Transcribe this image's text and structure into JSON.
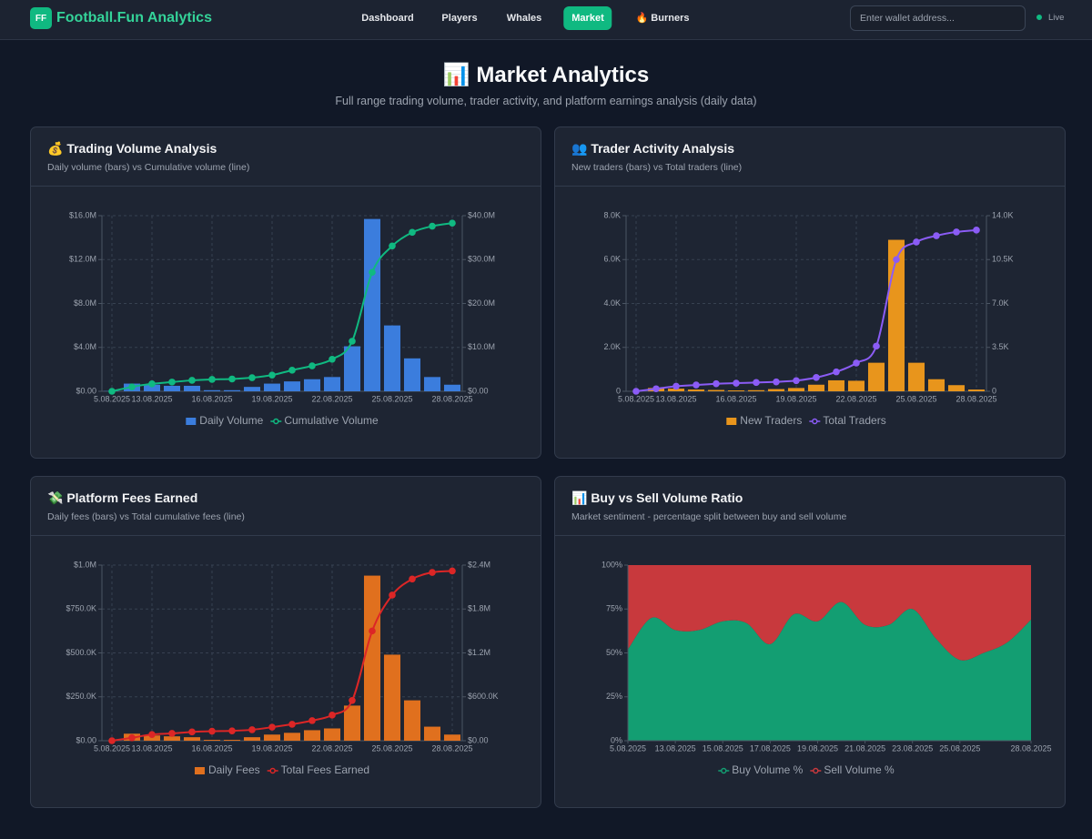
{
  "header": {
    "logo": "FF",
    "brand": "Football.Fun Analytics",
    "nav": [
      "Dashboard",
      "Players",
      "Whales",
      "Market",
      "🔥 Burners"
    ],
    "search_placeholder": "Enter wallet address...",
    "status": "Live"
  },
  "page": {
    "title": "📊 Market Analytics",
    "subtitle": "Full range trading volume, trader activity, and platform earnings analysis (daily data)"
  },
  "chart_data": [
    {
      "type": "combo",
      "title": "💰 Trading Volume Analysis",
      "subtitle": "Daily volume (bars) vs Cumulative volume (line)",
      "categories": [
        "5.08.2025",
        null,
        "13.08.2025",
        null,
        null,
        "16.08.2025",
        null,
        null,
        "19.08.2025",
        null,
        null,
        "22.08.2025",
        null,
        null,
        "25.08.2025",
        null,
        null,
        "28.08.2025"
      ],
      "series": [
        {
          "name": "Daily Volume",
          "type": "bar",
          "color": "#3b7ddd",
          "values": [
            20000,
            700000,
            600000,
            500000,
            500000,
            100000,
            100000,
            400000,
            700000,
            900000,
            1100000,
            1300000,
            4100000,
            15700000,
            6000000,
            3000000,
            1300000,
            600000
          ]
        },
        {
          "name": "Cumulative Volume",
          "type": "line",
          "axis": "y2",
          "color": "#10b981",
          "values": [
            0,
            1000000,
            1700000,
            2100000,
            2500000,
            2700000,
            2800000,
            3100000,
            3700000,
            4800000,
            5800000,
            7300000,
            11400000,
            27100000,
            33100000,
            36200000,
            37600000,
            38300000
          ]
        }
      ],
      "ylim": [
        0,
        16000000
      ],
      "yticks": [
        {
          "value": 0,
          "label": "$0.00"
        },
        {
          "value": 4000000,
          "label": "$4.0M"
        },
        {
          "value": 8000000,
          "label": "$8.0M"
        },
        {
          "value": 12000000,
          "label": "$12.0M"
        },
        {
          "value": 16000000,
          "label": "$16.0M"
        }
      ],
      "y2lim": [
        0,
        40000000
      ],
      "y2ticks": [
        {
          "value": 0,
          "label": "$0.00"
        },
        {
          "value": 10000000,
          "label": "$10.0M"
        },
        {
          "value": 20000000,
          "label": "$20.0M"
        },
        {
          "value": 30000000,
          "label": "$30.0M"
        },
        {
          "value": 40000000,
          "label": "$40.0M"
        }
      ],
      "grid": true,
      "legend": "bottom"
    },
    {
      "type": "combo",
      "title": "👥 Trader Activity Analysis",
      "subtitle": "New traders (bars) vs Total traders (line)",
      "categories": [
        "5.08.2025",
        null,
        "13.08.2025",
        null,
        null,
        "16.08.2025",
        null,
        null,
        "19.08.2025",
        null,
        null,
        "22.08.2025",
        null,
        null,
        "25.08.2025",
        null,
        null,
        "28.08.2025"
      ],
      "series": [
        {
          "name": "New Traders",
          "type": "bar",
          "color": "#e8951c",
          "values": [
            0,
            150,
            120,
            80,
            60,
            40,
            50,
            100,
            150,
            300,
            500,
            480,
            1300,
            6900,
            1300,
            550,
            280,
            80
          ]
        },
        {
          "name": "Total Traders",
          "type": "line",
          "axis": "y2",
          "color": "#8b5cf6",
          "values": [
            0,
            200,
            400,
            500,
            600,
            650,
            700,
            750,
            850,
            1100,
            1550,
            2250,
            3600,
            10500,
            11900,
            12400,
            12700,
            12850
          ]
        }
      ],
      "ylim": [
        0,
        8000
      ],
      "yticks": [
        0,
        {
          "value": 2000,
          "label": "2.0K"
        },
        {
          "value": 4000,
          "label": "4.0K"
        },
        {
          "value": 6000,
          "label": "6.0K"
        },
        {
          "value": 8000,
          "label": "8.0K"
        }
      ],
      "y2lim": [
        0,
        14000
      ],
      "y2ticks": [
        0,
        {
          "value": 3500,
          "label": "3.5K"
        },
        {
          "value": 7000,
          "label": "7.0K"
        },
        {
          "value": 10500,
          "label": "10.5K"
        },
        {
          "value": 14000,
          "label": "14.0K"
        }
      ],
      "grid": true,
      "legend": "bottom"
    },
    {
      "type": "combo",
      "title": "💸 Platform Fees Earned",
      "subtitle": "Daily fees (bars) vs Total cumulative fees (line)",
      "categories": [
        "5.08.2025",
        null,
        "13.08.2025",
        null,
        null,
        "16.08.2025",
        null,
        null,
        "19.08.2025",
        null,
        null,
        "22.08.2025",
        null,
        null,
        "25.08.2025",
        null,
        null,
        "28.08.2025"
      ],
      "series": [
        {
          "name": "Daily Fees",
          "type": "bar",
          "color": "#e0701e",
          "values": [
            0,
            40000,
            30000,
            25000,
            20000,
            5000,
            5000,
            20000,
            35000,
            45000,
            60000,
            70000,
            200000,
            940000,
            490000,
            230000,
            80000,
            35000
          ]
        },
        {
          "name": "Total Fees Earned",
          "type": "line",
          "axis": "y2",
          "color": "#dc2626",
          "values": [
            0,
            40000,
            85000,
            100000,
            120000,
            130000,
            135000,
            150000,
            185000,
            225000,
            275000,
            350000,
            550000,
            1500000,
            1990000,
            2210000,
            2300000,
            2320000
          ]
        }
      ],
      "ylim": [
        0,
        1000000
      ],
      "yticks": [
        {
          "value": 0,
          "label": "$0.00"
        },
        {
          "value": 250000,
          "label": "$250.0K"
        },
        {
          "value": 500000,
          "label": "$500.0K"
        },
        {
          "value": 750000,
          "label": "$750.0K"
        },
        {
          "value": 1000000,
          "label": "$1.0M"
        }
      ],
      "y2lim": [
        0,
        2400000
      ],
      "y2ticks": [
        {
          "value": 0,
          "label": "$0.00"
        },
        {
          "value": 600000,
          "label": "$600.0K"
        },
        {
          "value": 1200000,
          "label": "$1.2M"
        },
        {
          "value": 1800000,
          "label": "$1.8M"
        },
        {
          "value": 2400000,
          "label": "$2.4M"
        }
      ],
      "grid": true,
      "legend": "bottom"
    },
    {
      "type": "stacked_area",
      "title": "📊 Buy vs Sell Volume Ratio",
      "subtitle": "Market sentiment - percentage split between buy and sell volume",
      "categories": [
        "5.08.2025",
        null,
        "13.08.2025",
        null,
        "15.08.2025",
        null,
        "17.08.2025",
        null,
        "19.08.2025",
        null,
        "21.08.2025",
        null,
        "23.08.2025",
        null,
        "25.08.2025",
        null,
        null,
        "28.08.2025"
      ],
      "series": [
        {
          "name": "Buy Volume %",
          "color": "#139e72",
          "values": [
            52,
            70,
            63,
            63,
            68,
            67,
            55,
            72,
            68,
            79,
            66,
            66,
            75,
            58,
            46,
            50,
            56,
            69
          ]
        },
        {
          "name": "Sell Volume %",
          "color": "#c8393d",
          "values": [
            48,
            30,
            37,
            37,
            32,
            33,
            45,
            28,
            32,
            21,
            34,
            34,
            25,
            42,
            54,
            50,
            44,
            31
          ]
        }
      ],
      "ylim": [
        0,
        100
      ],
      "yticks": [
        {
          "value": 0,
          "label": "0%"
        },
        {
          "value": 25,
          "label": "25%"
        },
        {
          "value": 50,
          "label": "50%"
        },
        {
          "value": 75,
          "label": "75%"
        },
        {
          "value": 100,
          "label": "100%"
        }
      ],
      "grid": false,
      "legend": "bottom"
    }
  ]
}
